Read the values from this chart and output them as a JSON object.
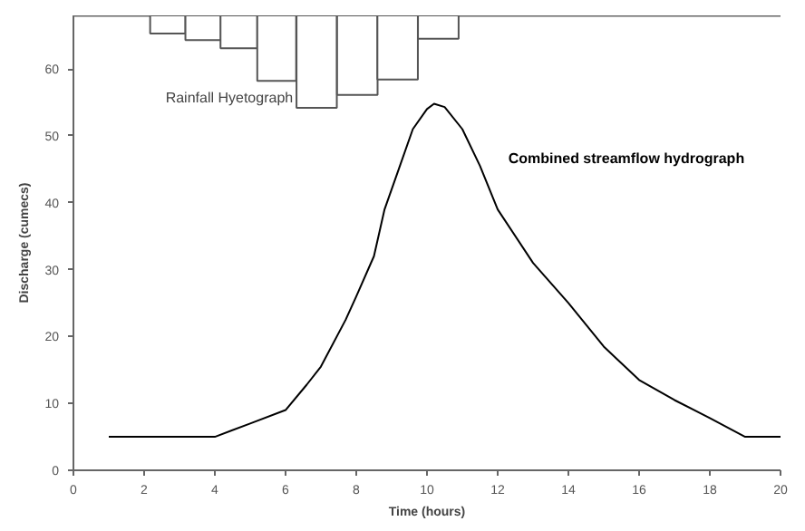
{
  "chart_data": {
    "type": "line",
    "xlabel": "Time (hours)",
    "ylabel": "Discharge (cumecs)",
    "xlim": [
      0,
      20
    ],
    "ylim": [
      0,
      68
    ],
    "xticks": [
      0,
      2,
      4,
      6,
      8,
      10,
      12,
      14,
      16,
      18,
      20
    ],
    "yticks": [
      0,
      10,
      20,
      30,
      40,
      50,
      60
    ],
    "grid": false,
    "series": [
      {
        "name": "Rainfall Hyetograph",
        "type": "bar",
        "color": "#ffffff",
        "x": [
          2.67,
          3.67,
          4.68,
          5.75,
          6.88,
          8.03,
          9.17,
          10.32
        ],
        "base": [
          65.3,
          64.3,
          63.1,
          58.2,
          54.2,
          56.1,
          58.4,
          64.5
        ],
        "values": [
          2.7,
          3.7,
          4.9,
          9.8,
          13.8,
          11.9,
          9.6,
          3.5
        ]
      },
      {
        "name": "Combined streamflow hydrograph",
        "color": "#000000",
        "x": [
          1,
          4,
          5,
          6,
          6.6,
          7,
          7.7,
          8,
          8.5,
          8.8,
          9.2,
          9.6,
          10,
          10.2,
          10.5,
          11,
          11.5,
          12,
          13,
          14,
          15,
          16,
          17,
          18,
          19,
          20
        ],
        "values": [
          5,
          5,
          7,
          9,
          12.8,
          15.5,
          22.5,
          26,
          32,
          39,
          45,
          51,
          54,
          54.8,
          54.3,
          51,
          45.5,
          39,
          31,
          25,
          18.5,
          13.5,
          10.5,
          7.8,
          5,
          5
        ]
      }
    ]
  }
}
